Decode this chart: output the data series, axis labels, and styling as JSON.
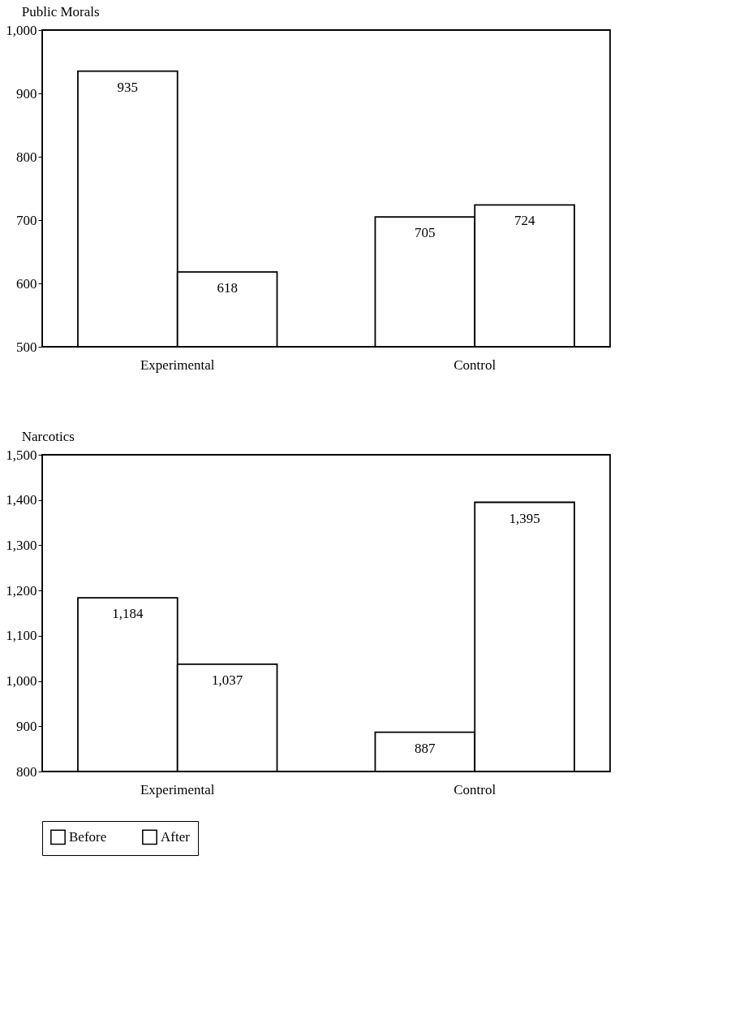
{
  "chart_data": [
    {
      "type": "bar",
      "title": "Public Morals",
      "categories": [
        "Experimental",
        "Control"
      ],
      "series": [
        {
          "name": "Before",
          "color": "#ffffff",
          "values": [
            935,
            705
          ],
          "value_labels": [
            "935",
            "705"
          ]
        },
        {
          "name": "After",
          "color": "#ffffff",
          "values": [
            618,
            724
          ],
          "value_labels": [
            "618",
            "724"
          ]
        }
      ],
      "ylim": [
        500,
        1000
      ],
      "yticks": [
        500,
        600,
        700,
        800,
        900,
        {
          "value": 1000,
          "label": "1,000"
        }
      ],
      "grid": false,
      "legend": "bottom"
    },
    {
      "type": "bar",
      "title": "Narcotics",
      "categories": [
        "Experimental",
        "Control"
      ],
      "series": [
        {
          "name": "Before",
          "color": "#ffffff",
          "values": [
            1184,
            887
          ],
          "value_labels": [
            "1,184",
            "887"
          ]
        },
        {
          "name": "After",
          "color": "#ffffff",
          "values": [
            1037,
            1395
          ],
          "value_labels": [
            "1,037",
            "1,395"
          ]
        }
      ],
      "ylim": [
        800,
        1500
      ],
      "yticks": [
        800,
        900,
        {
          "value": 1000,
          "label": "1,000"
        },
        {
          "value": 1100,
          "label": "1,100"
        },
        {
          "value": 1200,
          "label": "1,200"
        },
        {
          "value": 1300,
          "label": "1,300"
        },
        {
          "value": 1400,
          "label": "1,400"
        },
        {
          "value": 1500,
          "label": "1,500"
        }
      ],
      "grid": false,
      "legend": "bottom"
    }
  ]
}
